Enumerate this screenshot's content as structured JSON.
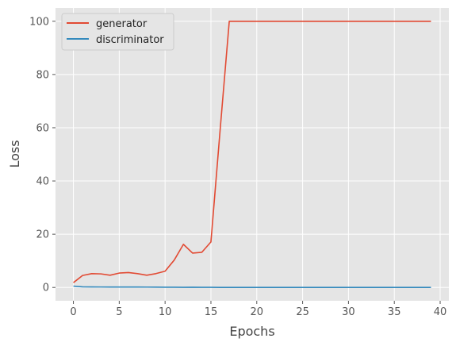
{
  "chart_data": {
    "type": "line",
    "title": "",
    "xlabel": "Epochs",
    "ylabel": "Loss",
    "xlim": [
      -1.95,
      40.95
    ],
    "ylim": [
      -5,
      105
    ],
    "xticks": [
      0,
      5,
      10,
      15,
      20,
      25,
      30,
      35,
      40
    ],
    "yticks": [
      0,
      20,
      40,
      60,
      80,
      100
    ],
    "grid": true,
    "style": "ggplot",
    "legend_position": "upper-left",
    "x": [
      0,
      1,
      2,
      3,
      4,
      5,
      6,
      7,
      8,
      9,
      10,
      11,
      12,
      13,
      14,
      15,
      16,
      17,
      18,
      19,
      20,
      21,
      22,
      23,
      24,
      25,
      26,
      27,
      28,
      29,
      30,
      31,
      32,
      33,
      34,
      35,
      36,
      37,
      38,
      39
    ],
    "series": [
      {
        "name": "generator",
        "color": "#E24A33",
        "values": [
          1.8,
          4.5,
          5.2,
          5.1,
          4.6,
          5.4,
          5.6,
          5.2,
          4.6,
          5.2,
          6.1,
          10.3,
          16.2,
          12.9,
          13.2,
          17.1,
          59.0,
          100,
          100,
          100,
          100,
          100,
          100,
          100,
          100,
          100,
          100,
          100,
          100,
          100,
          100,
          100,
          100,
          100,
          100,
          100,
          100,
          100,
          100,
          100
        ]
      },
      {
        "name": "discriminator",
        "color": "#348ABD",
        "values": [
          0.5,
          0.25,
          0.2,
          0.18,
          0.17,
          0.15,
          0.15,
          0.16,
          0.14,
          0.12,
          0.1,
          0.08,
          0.06,
          0.1,
          0.05,
          0.04,
          0.02,
          0,
          0,
          0,
          0,
          0,
          0,
          0,
          0,
          0,
          0,
          0,
          0,
          0,
          0,
          0,
          0,
          0,
          0,
          0,
          0,
          0,
          0,
          0
        ]
      }
    ]
  }
}
